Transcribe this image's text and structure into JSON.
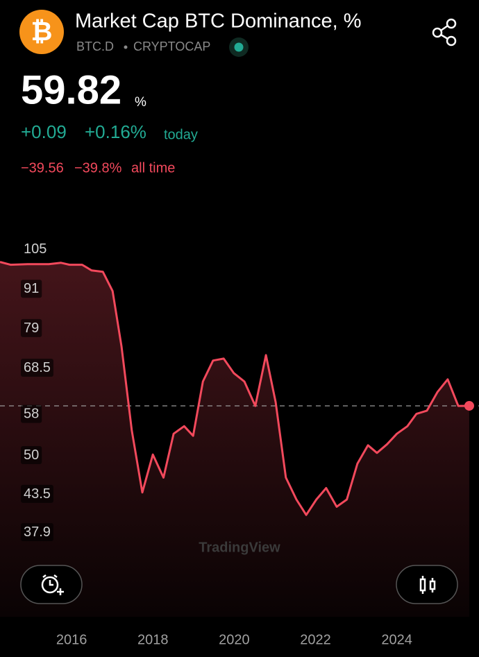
{
  "header": {
    "title": "Market Cap BTC Dominance, %",
    "symbol": "BTC.D",
    "exchange": "CRYPTOCAP",
    "price": "59.82",
    "unit": "%",
    "change": "+0.09",
    "change_percent": "+0.16%",
    "change_period": "today",
    "all_time_change": "−39.56",
    "all_time_change_percent": "−39.8%",
    "all_time_period": "all time"
  },
  "watermark": "TradingView",
  "chart_data": {
    "type": "line",
    "log_scale": true,
    "x": [
      2014.24,
      2014.5,
      2014.92,
      2015.44,
      2015.74,
      2015.95,
      2016.26,
      2016.49,
      2016.77,
      2017.01,
      2017.23,
      2017.48,
      2017.74,
      2018.0,
      2018.26,
      2018.51,
      2018.77,
      2018.99,
      2019.23,
      2019.48,
      2019.74,
      2019.99,
      2020.25,
      2020.52,
      2020.78,
      2021.02,
      2021.27,
      2021.53,
      2021.77,
      2022.02,
      2022.26,
      2022.52,
      2022.77,
      2023.03,
      2023.29,
      2023.51,
      2023.76,
      2024.0,
      2024.26,
      2024.48,
      2024.74,
      2025.0,
      2025.25,
      2025.51,
      2025.78
    ],
    "series": [
      {
        "color": "#f2495c",
        "values": [
          100.4,
          99.4,
          99.6,
          99.6,
          100.1,
          99.4,
          99.4,
          97.4,
          96.9,
          90.4,
          74.0,
          54.8,
          43.8,
          50.2,
          46.2,
          54.1,
          55.6,
          53.7,
          65.3,
          70.4,
          70.9,
          67.3,
          65.3,
          59.8,
          71.8,
          60.6,
          46.2,
          42.7,
          40.4,
          42.7,
          44.5,
          41.6,
          42.7,
          48.6,
          51.9,
          50.5,
          52.1,
          54.1,
          55.6,
          58.1,
          58.8,
          62.9,
          65.8,
          59.8,
          59.82
        ]
      }
    ],
    "xlim": [
      2014.24,
      2026.02
    ],
    "xticks": [
      2016,
      2018,
      2020,
      2022,
      2024
    ],
    "ylim": [
      28,
      110
    ],
    "yticks": [
      105,
      91,
      79,
      68.5,
      58,
      50,
      43.5,
      37.9
    ]
  }
}
